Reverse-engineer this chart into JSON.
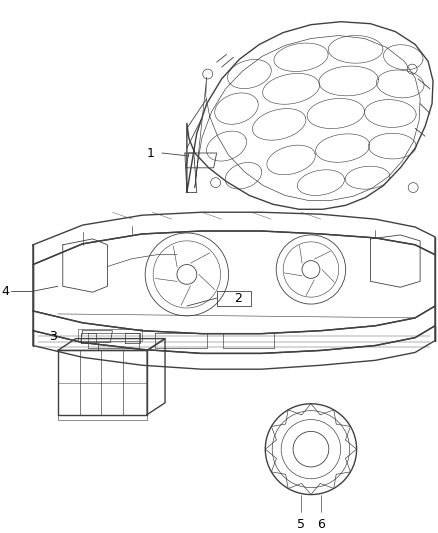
{
  "background_color": "#ffffff",
  "line_color": "#404040",
  "label_color": "#000000",
  "figsize": [
    4.38,
    5.33
  ],
  "dpi": 100
}
